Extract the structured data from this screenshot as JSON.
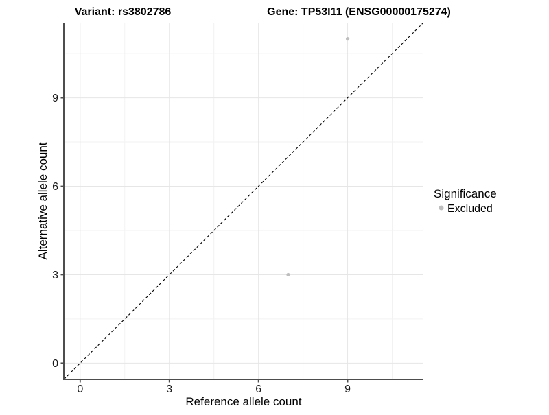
{
  "header": {
    "title_left": "Variant: rs3802786",
    "title_right": "Gene: TP53I11 (ENSG00000175274)"
  },
  "legend": {
    "title": "Significance",
    "items": [
      {
        "label": "Excluded",
        "color": "#bebebe",
        "marker": "circle-icon"
      }
    ]
  },
  "colors": {
    "background": "#ffffff",
    "axis_line": "#4d4d4d",
    "grid_major": "#e6e6e6",
    "grid_minor": "#f2f2f2",
    "point": "#bebebe",
    "reference_line": "#000000",
    "text": "#000000"
  },
  "chart_data": {
    "type": "scatter",
    "title": "Variant: rs3802786    Gene: TP53I11 (ENSG00000175274)",
    "xlabel": "Reference allele count",
    "ylabel": "Alternative allele count",
    "xlim": [
      -0.55,
      11.55
    ],
    "ylim": [
      -0.55,
      11.55
    ],
    "x_ticks": [
      0,
      3,
      6,
      9
    ],
    "y_ticks": [
      0,
      3,
      6,
      9
    ],
    "x_minor_ticks": [
      1.5,
      4.5,
      7.5,
      10.5
    ],
    "y_minor_ticks": [
      1.5,
      4.5,
      7.5,
      10.5
    ],
    "grid": "major+minor",
    "legend_position": "right",
    "legend_title": "Significance",
    "series": [
      {
        "name": "Excluded",
        "color": "#bebebe",
        "points": [
          [
            9,
            11
          ],
          [
            7,
            3
          ]
        ]
      }
    ],
    "reference_line": {
      "kind": "identity",
      "slope": 1,
      "intercept": 0,
      "style": "dashed",
      "color": "#000000"
    }
  }
}
